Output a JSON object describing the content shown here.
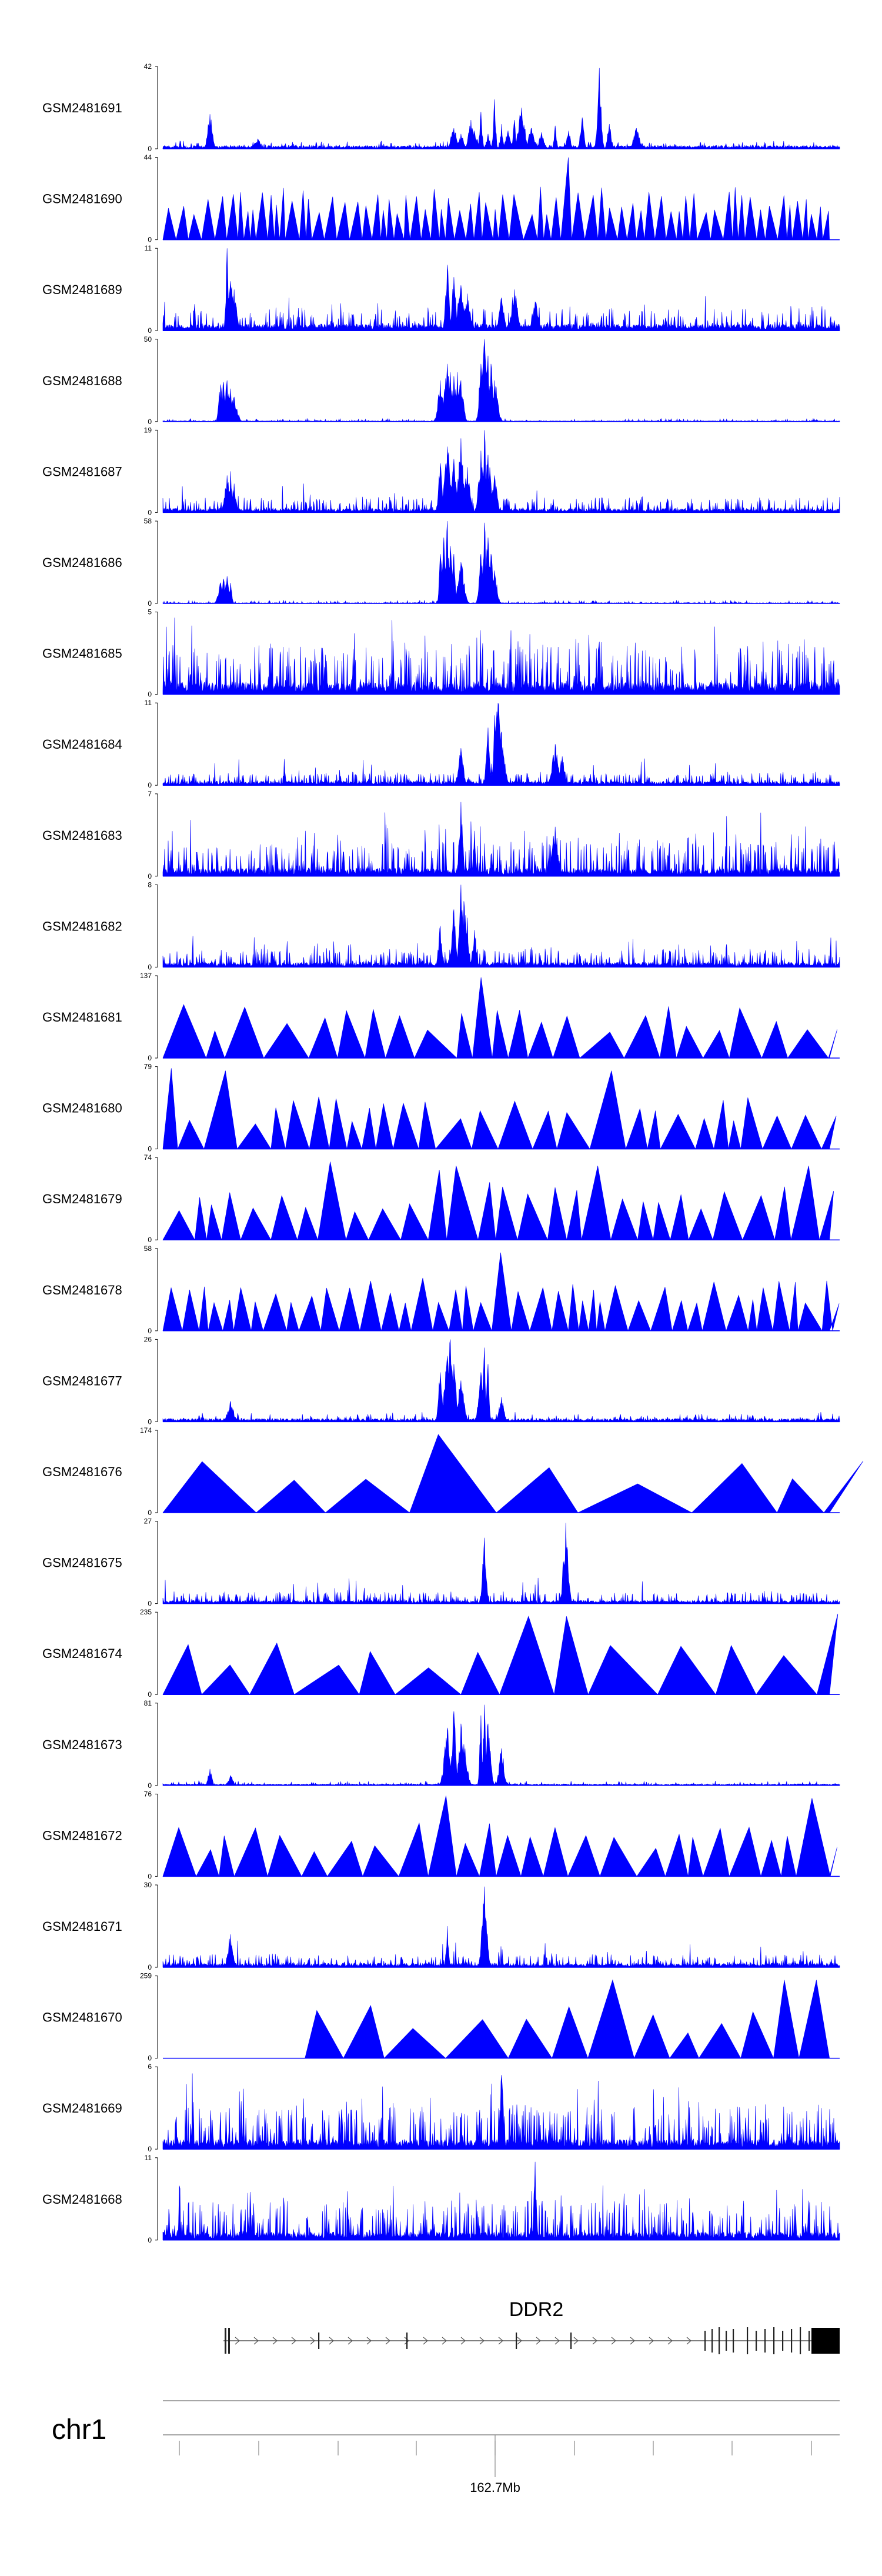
{
  "chart_data": {
    "type": "area",
    "fill_color": "#0000FF",
    "series": [
      {
        "name": "GSM2481691",
        "ymax": 42,
        "ymin": 0,
        "pattern": "sparse",
        "base": 0.04,
        "noise": 0.06,
        "peaks": [
          [
            0.07,
            0.42
          ],
          [
            0.14,
            0.12
          ],
          [
            0.43,
            0.25
          ],
          [
            0.44,
            0.18
          ],
          [
            0.455,
            0.35
          ],
          [
            0.46,
            0.22
          ],
          [
            0.47,
            0.45
          ],
          [
            0.48,
            0.18
          ],
          [
            0.49,
            0.6
          ],
          [
            0.5,
            0.3
          ],
          [
            0.51,
            0.22
          ],
          [
            0.52,
            0.35
          ],
          [
            0.53,
            0.5
          ],
          [
            0.545,
            0.25
          ],
          [
            0.56,
            0.2
          ],
          [
            0.58,
            0.28
          ],
          [
            0.6,
            0.22
          ],
          [
            0.62,
            0.38
          ],
          [
            0.645,
            0.98
          ],
          [
            0.66,
            0.3
          ],
          [
            0.7,
            0.25
          ]
        ]
      },
      {
        "name": "GSM2481690",
        "ymax": 44,
        "ymin": 0,
        "pattern": "triangles",
        "density": 70,
        "peaks": [
          [
            0.6,
            0.55
          ],
          [
            0.6,
            1.0
          ],
          [
            0.53,
            0.55
          ],
          [
            0.51,
            0.48
          ]
        ]
      },
      {
        "name": "GSM2481689",
        "ymax": 11,
        "ymin": 0,
        "pattern": "dense",
        "base": 0.08,
        "noise": 0.22,
        "peaks": [
          [
            0.095,
            1.0
          ],
          [
            0.1,
            0.6
          ],
          [
            0.105,
            0.5
          ],
          [
            0.42,
            0.8
          ],
          [
            0.43,
            0.65
          ],
          [
            0.44,
            0.55
          ],
          [
            0.45,
            0.45
          ],
          [
            0.5,
            0.4
          ],
          [
            0.52,
            0.5
          ],
          [
            0.55,
            0.35
          ]
        ]
      },
      {
        "name": "GSM2481688",
        "ymax": 50,
        "ymin": 0,
        "pattern": "sparse",
        "base": 0.01,
        "noise": 0.03,
        "peaks": [
          [
            0.085,
            0.45
          ],
          [
            0.09,
            0.48
          ],
          [
            0.095,
            0.5
          ],
          [
            0.1,
            0.4
          ],
          [
            0.105,
            0.3
          ],
          [
            0.41,
            0.5
          ],
          [
            0.42,
            0.7
          ],
          [
            0.425,
            0.6
          ],
          [
            0.43,
            0.55
          ],
          [
            0.435,
            0.6
          ],
          [
            0.44,
            0.5
          ],
          [
            0.47,
            0.7
          ],
          [
            0.475,
            1.0
          ],
          [
            0.48,
            0.8
          ],
          [
            0.485,
            0.7
          ],
          [
            0.49,
            0.5
          ]
        ]
      },
      {
        "name": "GSM2481687",
        "ymax": 19,
        "ymin": 0,
        "pattern": "dense",
        "base": 0.05,
        "noise": 0.15,
        "peaks": [
          [
            0.095,
            0.45
          ],
          [
            0.1,
            0.5
          ],
          [
            0.105,
            0.35
          ],
          [
            0.41,
            0.6
          ],
          [
            0.42,
            0.8
          ],
          [
            0.43,
            0.65
          ],
          [
            0.44,
            0.9
          ],
          [
            0.45,
            0.55
          ],
          [
            0.47,
            0.75
          ],
          [
            0.475,
            1.0
          ],
          [
            0.48,
            0.7
          ],
          [
            0.49,
            0.45
          ]
        ]
      },
      {
        "name": "GSM2481686",
        "ymax": 58,
        "ymin": 0,
        "pattern": "sparse",
        "base": 0.01,
        "noise": 0.03,
        "peaks": [
          [
            0.085,
            0.25
          ],
          [
            0.09,
            0.3
          ],
          [
            0.095,
            0.33
          ],
          [
            0.1,
            0.25
          ],
          [
            0.41,
            0.6
          ],
          [
            0.415,
            0.8
          ],
          [
            0.42,
            1.0
          ],
          [
            0.425,
            0.7
          ],
          [
            0.43,
            0.6
          ],
          [
            0.44,
            0.5
          ],
          [
            0.47,
            0.6
          ],
          [
            0.475,
            0.98
          ],
          [
            0.48,
            0.8
          ],
          [
            0.485,
            0.6
          ],
          [
            0.49,
            0.4
          ]
        ]
      },
      {
        "name": "GSM2481685",
        "ymax": 5,
        "ymin": 0,
        "pattern": "spikes",
        "base": 0.15,
        "noise": 0.5,
        "peaks": []
      },
      {
        "name": "GSM2481684",
        "ymax": 11,
        "ymin": 0,
        "pattern": "dense",
        "base": 0.05,
        "noise": 0.12,
        "peaks": [
          [
            0.44,
            0.45
          ],
          [
            0.48,
            0.7
          ],
          [
            0.49,
            0.85
          ],
          [
            0.495,
            1.0
          ],
          [
            0.5,
            0.65
          ],
          [
            0.58,
            0.5
          ],
          [
            0.59,
            0.35
          ]
        ]
      },
      {
        "name": "GSM2481683",
        "ymax": 7,
        "ymin": 0,
        "pattern": "spikes",
        "base": 0.1,
        "noise": 0.35,
        "peaks": [
          [
            0.44,
            0.9
          ],
          [
            0.46,
            0.55
          ],
          [
            0.58,
            0.6
          ]
        ]
      },
      {
        "name": "GSM2481682",
        "ymax": 8,
        "ymin": 0,
        "pattern": "dense",
        "base": 0.06,
        "noise": 0.18,
        "peaks": [
          [
            0.41,
            0.5
          ],
          [
            0.43,
            0.7
          ],
          [
            0.44,
            1.0
          ],
          [
            0.445,
            0.8
          ],
          [
            0.45,
            0.6
          ],
          [
            0.46,
            0.45
          ]
        ]
      },
      {
        "name": "GSM2481681",
        "ymax": 137,
        "ymin": 0,
        "pattern": "triangles",
        "density": 22,
        "peaks": [
          [
            0.47,
            0.98
          ],
          [
            0.42,
            0.5
          ],
          [
            0.73,
            0.4
          ]
        ]
      },
      {
        "name": "GSM2481680",
        "ymax": 79,
        "ymin": 0,
        "pattern": "triangles",
        "density": 28,
        "peaks": [
          [
            0.0,
            0.98
          ],
          [
            0.11,
            0.95
          ],
          [
            0.64,
            0.95
          ]
        ]
      },
      {
        "name": "GSM2481679",
        "ymax": 74,
        "ymin": 0,
        "pattern": "triangles",
        "density": 30,
        "peaks": [
          [
            0.25,
            0.95
          ],
          [
            0.42,
            0.85
          ],
          [
            0.44,
            0.9
          ],
          [
            0.48,
            0.7
          ],
          [
            0.63,
            0.9
          ],
          [
            0.97,
            0.9
          ]
        ]
      },
      {
        "name": "GSM2481678",
        "ymax": 58,
        "ymin": 0,
        "pattern": "triangles",
        "density": 42,
        "peaks": [
          [
            0.49,
            0.95
          ],
          [
            0.42,
            0.5
          ]
        ]
      },
      {
        "name": "GSM2481677",
        "ymax": 26,
        "ymin": 0,
        "pattern": "sparse",
        "base": 0.04,
        "noise": 0.08,
        "peaks": [
          [
            0.1,
            0.25
          ],
          [
            0.41,
            0.6
          ],
          [
            0.42,
            0.8
          ],
          [
            0.425,
            1.0
          ],
          [
            0.43,
            0.7
          ],
          [
            0.44,
            0.5
          ],
          [
            0.47,
            0.6
          ],
          [
            0.475,
            0.9
          ],
          [
            0.48,
            0.7
          ],
          [
            0.5,
            0.3
          ]
        ]
      },
      {
        "name": "GSM2481676",
        "ymax": 174,
        "ymin": 0,
        "pattern": "triangles",
        "density": 8,
        "peaks": [
          [
            0.45,
            0.95
          ],
          [
            0.47,
            0.95
          ]
        ]
      },
      {
        "name": "GSM2481675",
        "ymax": 27,
        "ymin": 0,
        "pattern": "dense",
        "base": 0.04,
        "noise": 0.12,
        "peaks": [
          [
            0.475,
            0.8
          ],
          [
            0.595,
            0.98
          ]
        ]
      },
      {
        "name": "GSM2481674",
        "ymax": 235,
        "ymin": 0,
        "pattern": "triangles",
        "density": 12,
        "peaks": [
          [
            0.53,
            0.95
          ],
          [
            0.58,
            0.95
          ],
          [
            0.98,
            0.98
          ]
        ]
      },
      {
        "name": "GSM2481673",
        "ymax": 81,
        "ymin": 0,
        "pattern": "sparse",
        "base": 0.02,
        "noise": 0.04,
        "peaks": [
          [
            0.07,
            0.2
          ],
          [
            0.1,
            0.12
          ],
          [
            0.42,
            0.7
          ],
          [
            0.43,
            0.9
          ],
          [
            0.44,
            0.75
          ],
          [
            0.445,
            0.5
          ],
          [
            0.47,
            0.85
          ],
          [
            0.475,
            0.98
          ],
          [
            0.48,
            0.75
          ],
          [
            0.5,
            0.45
          ]
        ]
      },
      {
        "name": "GSM2481672",
        "ymax": 76,
        "ymin": 0,
        "pattern": "triangles",
        "density": 26,
        "peaks": [
          [
            0.41,
            0.98
          ],
          [
            0.97,
            0.95
          ]
        ]
      },
      {
        "name": "GSM2481671",
        "ymax": 30,
        "ymin": 0,
        "pattern": "dense",
        "base": 0.05,
        "noise": 0.12,
        "peaks": [
          [
            0.475,
            0.98
          ],
          [
            0.42,
            0.5
          ],
          [
            0.1,
            0.4
          ]
        ]
      },
      {
        "name": "GSM2481670",
        "ymax": 259,
        "ymin": 0,
        "pattern": "triangles",
        "density": 12,
        "start": 0.21,
        "peaks": [
          [
            0.68,
            0.95
          ],
          [
            0.94,
            0.95
          ],
          [
            0.97,
            0.95
          ]
        ]
      },
      {
        "name": "GSM2481669",
        "ymax": 6,
        "ymin": 0,
        "pattern": "spikes",
        "base": 0.12,
        "noise": 0.45,
        "peaks": [
          [
            0.5,
            0.9
          ]
        ]
      },
      {
        "name": "GSM2481668",
        "ymax": 11,
        "ymin": 0,
        "pattern": "spikes",
        "base": 0.1,
        "noise": 0.4,
        "peaks": [
          [
            0.55,
            0.95
          ]
        ]
      }
    ],
    "gene": {
      "name": "DDR2",
      "start_frac": 0.095,
      "end_frac": 1.0,
      "exons_frac": [
        0.095,
        0.1,
        0.235,
        0.36,
        0.52,
        0.605,
        0.8,
        0.81,
        0.82,
        0.83,
        0.84,
        0.86,
        0.87,
        0.88,
        0.9,
        0.91,
        0.92,
        0.93,
        0.94,
        0.95,
        0.96
      ],
      "last_exon_start_frac": 0.96
    },
    "axis": {
      "chromosome": "chr1",
      "tick_label": "162.7Mb",
      "tick_label_frac": 0.495
    }
  }
}
